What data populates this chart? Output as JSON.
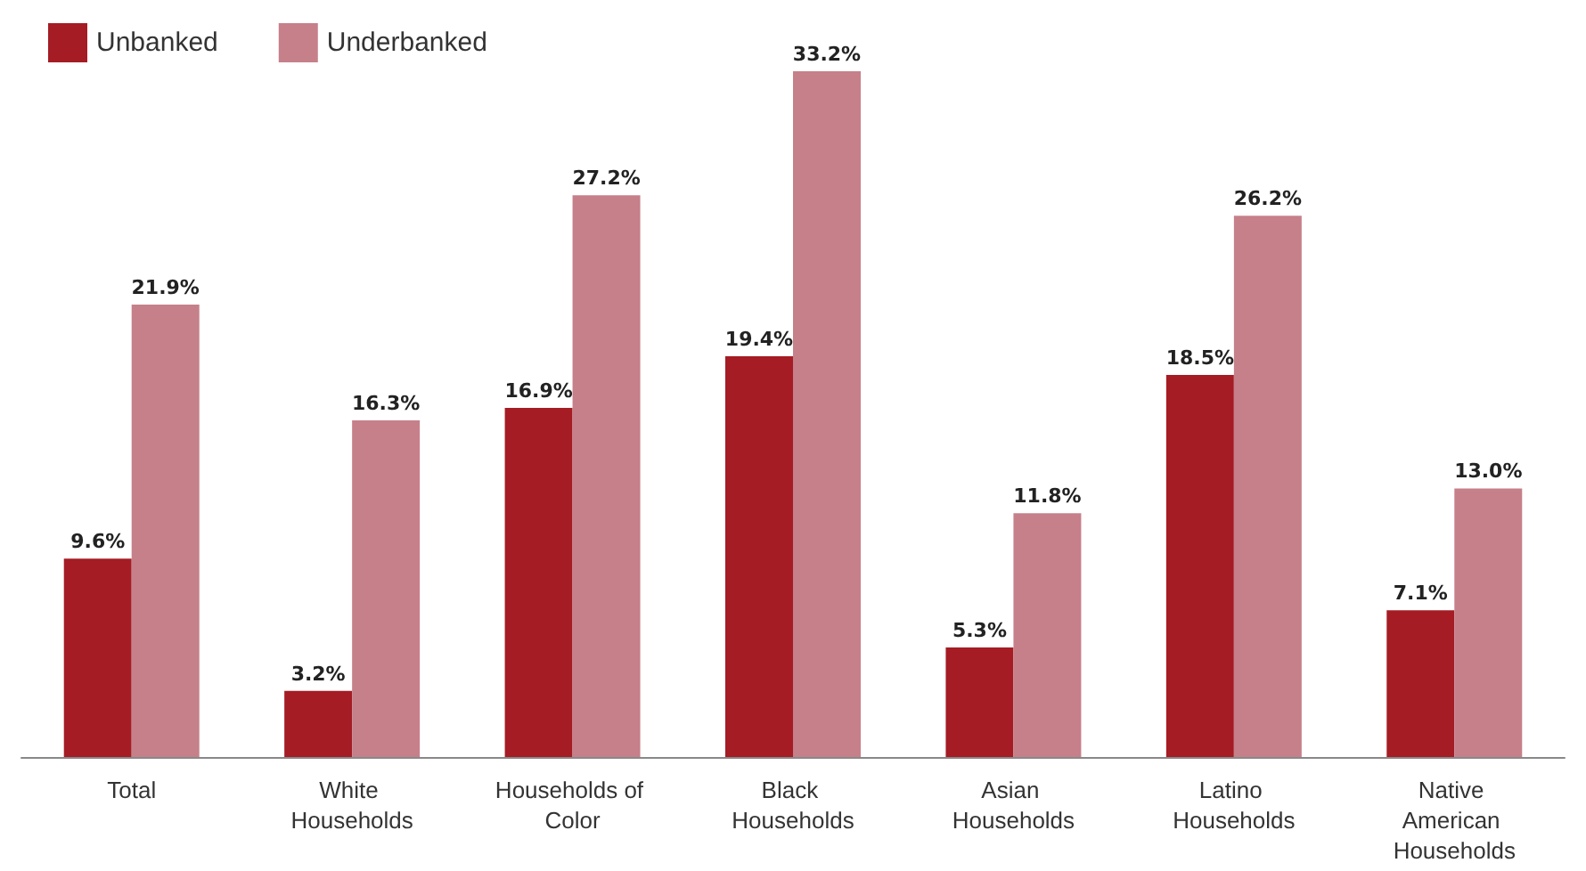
{
  "chart_data": {
    "type": "bar",
    "categories": [
      "Total",
      "White Households",
      "Households of Color",
      "Black Households",
      "Asian Households",
      "Latino Households",
      "Native American Households"
    ],
    "series": [
      {
        "name": "Unbanked",
        "color": "#a51c24",
        "values": [
          9.6,
          3.2,
          16.9,
          19.4,
          5.3,
          18.5,
          7.1
        ],
        "value_labels": [
          "9.6%",
          "3.2%",
          "16.9%",
          "19.4%",
          "5.3%",
          "18.5%",
          "7.1%"
        ]
      },
      {
        "name": "Underbanked",
        "color": "#c6808a",
        "values": [
          21.9,
          16.3,
          27.2,
          33.2,
          11.8,
          26.2,
          13.0
        ],
        "value_labels": [
          "21.9%",
          "16.3%",
          "27.2%",
          "33.2%",
          "11.8%",
          "26.2%",
          "13.0%"
        ]
      }
    ],
    "legend": "top left",
    "tick_labels": "x"
  }
}
